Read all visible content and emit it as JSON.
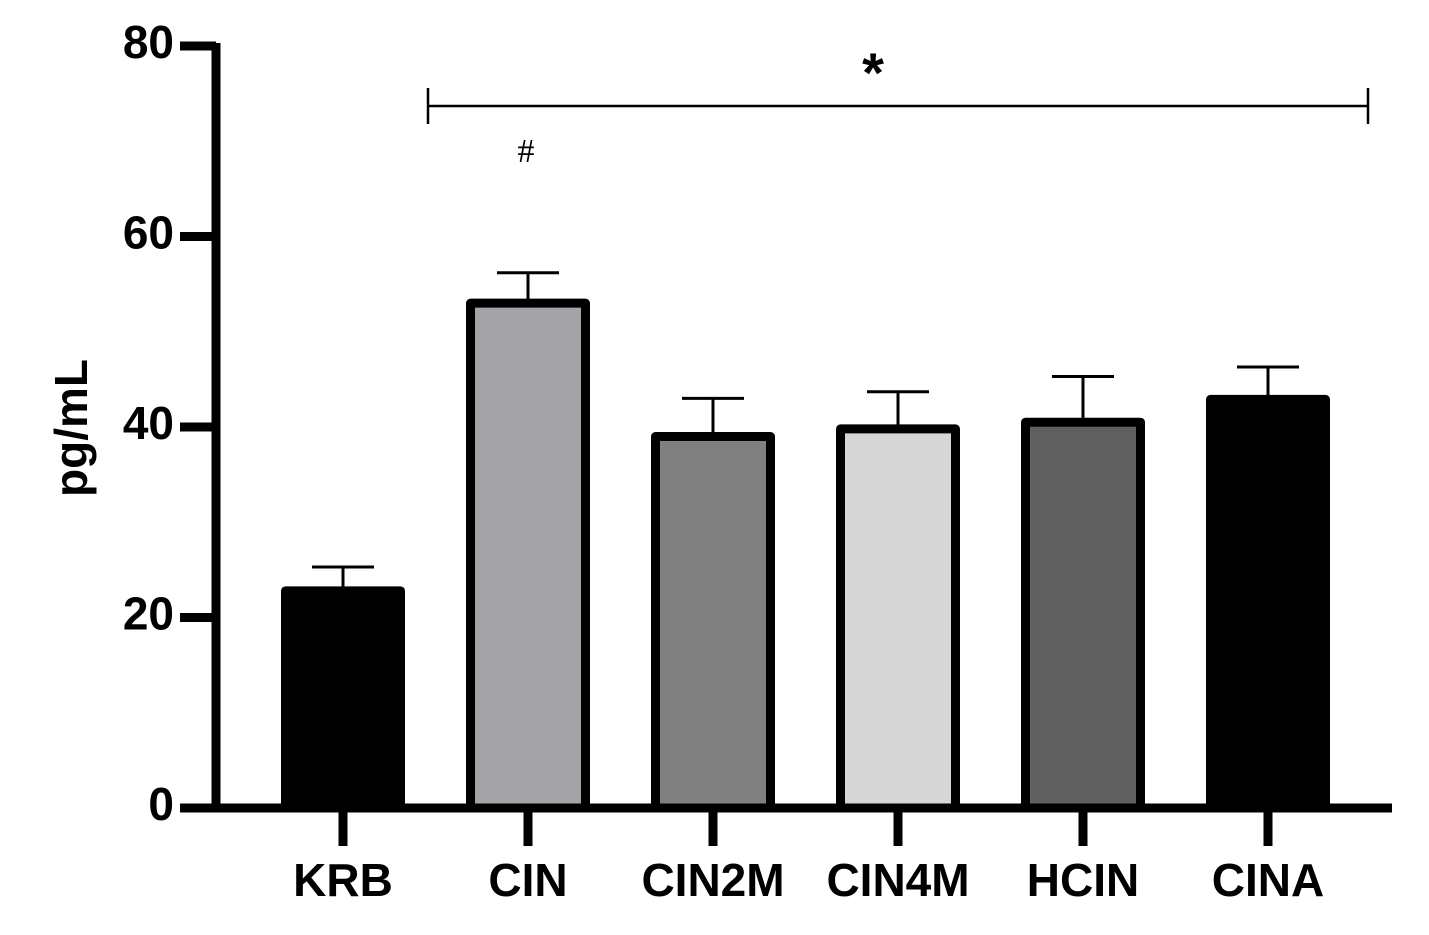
{
  "chart_data": {
    "type": "bar",
    "categories": [
      "KRB",
      "CIN",
      "CIN2M",
      "CIN4M",
      "HCIN",
      "CINA"
    ],
    "values": [
      22.8,
      53.0,
      39.0,
      39.8,
      40.5,
      42.9
    ],
    "errors": [
      2.5,
      3.2,
      4.0,
      3.9,
      4.8,
      3.4
    ],
    "colors": [
      "#000000",
      "#a3a3a8",
      "#808080",
      "#d6d6d6",
      "#606060",
      "#000000"
    ],
    "ylabel": "pg/mL",
    "xlabel": "",
    "ylim": [
      0,
      80
    ],
    "yticks": [
      0,
      20,
      40,
      60,
      80
    ],
    "grid": false,
    "annotations": {
      "bracket_symbol": "*",
      "bracket_from": "CIN",
      "bracket_to": "CINA",
      "marker_symbol": "#",
      "marker_category": "CIN"
    }
  }
}
